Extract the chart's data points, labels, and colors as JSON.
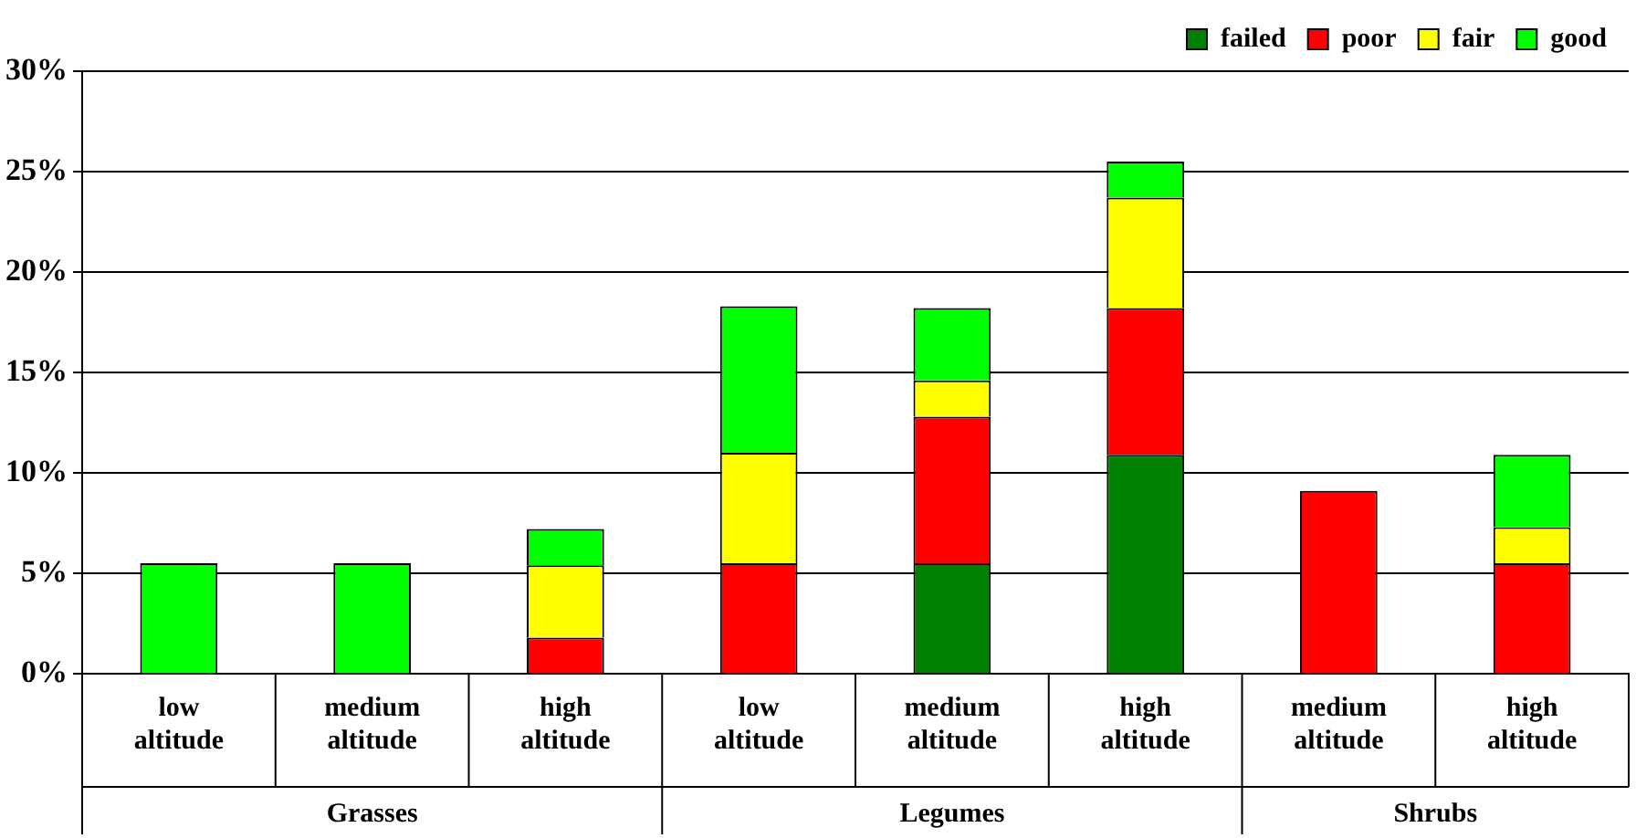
{
  "chart_data": {
    "type": "bar",
    "stacked": true,
    "categories": [
      "low altitude",
      "medium altitude",
      "high altitude",
      "low altitude",
      "medium altitude",
      "high altitude",
      "medium altitude",
      "high altitude"
    ],
    "series": [
      {
        "name": "failed",
        "color": "#008000",
        "values": [
          null,
          null,
          null,
          null,
          5.5,
          10.9,
          null,
          null
        ]
      },
      {
        "name": "poor",
        "color": "#ff0000",
        "values": [
          null,
          null,
          1.8,
          5.5,
          7.3,
          7.3,
          9.1,
          5.5
        ]
      },
      {
        "name": "fair",
        "color": "#ffff00",
        "values": [
          null,
          null,
          3.6,
          5.5,
          1.8,
          5.5,
          null,
          1.8
        ]
      },
      {
        "name": "good",
        "color": "#00ff00",
        "values": [
          5.5,
          5.5,
          1.8,
          7.3,
          3.6,
          1.8,
          null,
          3.6
        ]
      }
    ],
    "ylim": [
      0,
      30
    ],
    "yticks": [
      {
        "value": 0,
        "label": "0%"
      },
      {
        "value": 5,
        "label": "5%"
      },
      {
        "value": 10,
        "label": "10%"
      },
      {
        "value": 15,
        "label": "15%"
      },
      {
        "value": 20,
        "label": "20%"
      },
      {
        "value": 25,
        "label": "25%"
      },
      {
        "value": 30,
        "label": "30%"
      }
    ],
    "grid": "y",
    "legend": "top right",
    "annotations": [
      "Grasses",
      "Legumes",
      "Shrubs"
    ]
  }
}
